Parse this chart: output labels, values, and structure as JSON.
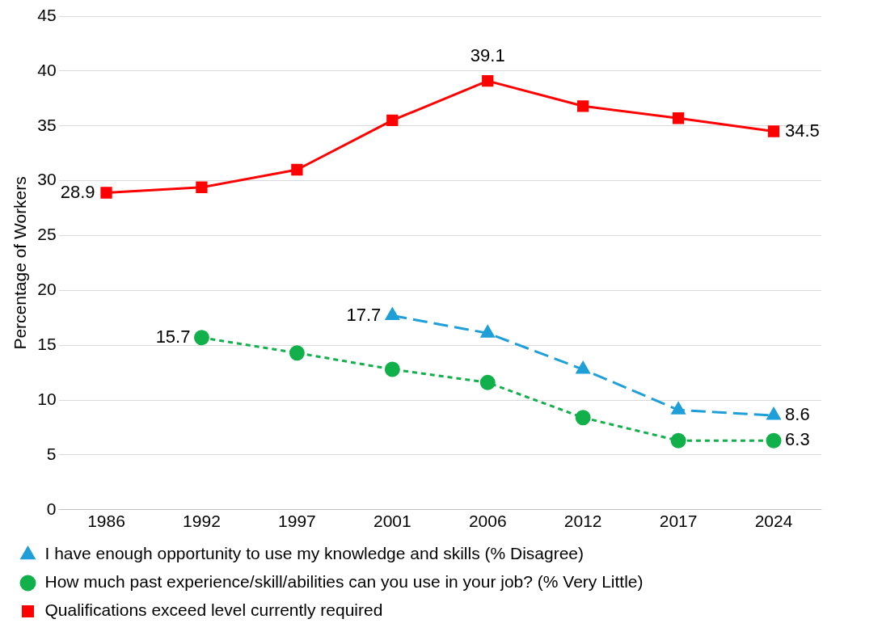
{
  "chart_data": {
    "type": "line",
    "ylabel": "Percentage of Workers",
    "categories": [
      "1986",
      "1992",
      "1997",
      "2001",
      "2006",
      "2012",
      "2017",
      "2024"
    ],
    "series": [
      {
        "name": "I have enough opportunity to use my knowledge and skills (% Disagree)",
        "color": "#1f9fd8",
        "marker": "triangle",
        "line_style": "dashed",
        "values": [
          null,
          null,
          null,
          17.7,
          16.1,
          12.8,
          9.1,
          8.6
        ],
        "value_labels": [
          null,
          null,
          null,
          "17.7",
          null,
          null,
          null,
          "8.6"
        ]
      },
      {
        "name": "How much past experience/skill/abilities can you use in your job? (% Very Little)",
        "color": "#12b04b",
        "marker": "circle",
        "line_style": "dotted",
        "values": [
          null,
          15.7,
          14.3,
          12.8,
          11.6,
          8.4,
          6.3,
          6.3
        ],
        "value_labels": [
          null,
          "15.7",
          null,
          null,
          null,
          null,
          null,
          "6.3"
        ]
      },
      {
        "name": "Qualifications exceed level currently required",
        "color": "#ff0000",
        "marker": "square",
        "line_style": "solid",
        "values": [
          28.9,
          29.4,
          31.0,
          35.5,
          39.1,
          36.8,
          35.7,
          34.5
        ],
        "value_labels": [
          "28.9",
          null,
          null,
          null,
          "39.1",
          null,
          null,
          "34.5"
        ]
      }
    ],
    "ylim": [
      0,
      45
    ],
    "yticks": [
      0,
      5,
      10,
      15,
      20,
      25,
      30,
      35,
      40,
      45
    ],
    "grid": "y",
    "legend": "bottom"
  }
}
